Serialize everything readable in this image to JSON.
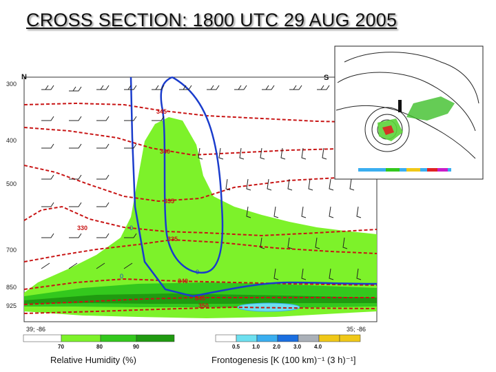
{
  "title": "CROSS SECTION:  1800 UTC 29 AUG 2005",
  "endpoints": {
    "left": "N",
    "right": "S"
  },
  "coords": {
    "left": "39; -86",
    "right": "35; -86"
  },
  "pressure_levels": [
    "300",
    "400",
    "500",
    "700",
    "850",
    "925"
  ],
  "theta_labels": [
    "345",
    "340",
    "335",
    "330",
    "335",
    "340",
    "345",
    "350"
  ],
  "frontogenesis_labels": [
    "0",
    "0",
    "0"
  ],
  "colorbars": {
    "rh": {
      "label": "Relative Humidity (%)",
      "ticks": [
        "70",
        "80",
        "90"
      ],
      "colors": [
        "#ffffff",
        "#7df22a",
        "#33c81d",
        "#1f9a10",
        "#107a08"
      ]
    },
    "frontogenesis": {
      "label": "Frontogenesis [K (100 km)⁻¹ (3 h)⁻¹]",
      "ticks": [
        "0.5",
        "1.0",
        "2.0",
        "3.0",
        "4.0"
      ],
      "colors": [
        "#ffffff",
        "#6de0f0",
        "#3aaef0",
        "#1a6ee0",
        "#aab0b8",
        "#f0c818"
      ]
    }
  },
  "inset_map": {
    "description_icon": "map-inset-icon"
  },
  "chart_data": {
    "type": "cross-section",
    "title": "CROSS SECTION:  1800 UTC 29 AUG 2005",
    "x_start": "39; -86",
    "x_end": "35; -86",
    "y_levels_hPa": [
      300,
      400,
      500,
      700,
      850,
      925
    ],
    "potential_temperature_K": [
      330,
      335,
      340,
      345,
      350
    ],
    "relative_humidity_levels": [
      70,
      80,
      90
    ],
    "frontogenesis_levels": [
      0.5,
      1.0,
      2.0,
      3.0,
      4.0
    ]
  }
}
